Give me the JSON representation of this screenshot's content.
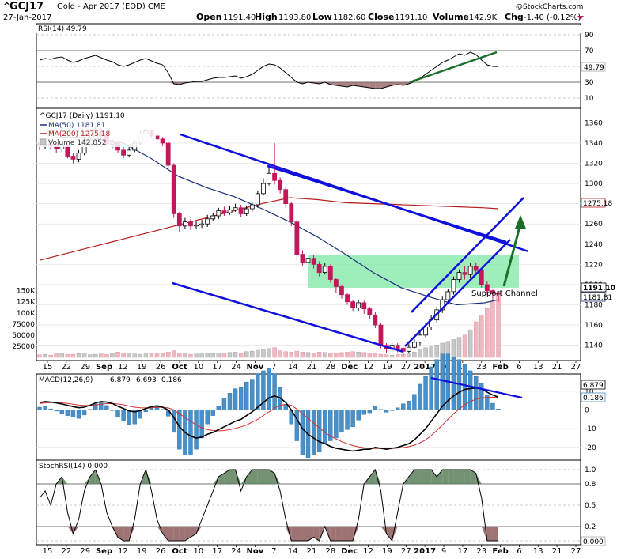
{
  "header": {
    "symbol": "GCJ17",
    "description": "Gold - Apr 2017 (EOD) CME",
    "date": "27-Jan-2017",
    "credit": "@StockCharts.com",
    "open_label": "Open",
    "open": "1191.40",
    "high_label": "High",
    "high": "1193.80",
    "low_label": "Low",
    "low": "1182.60",
    "close_label": "Close",
    "close": "1191.10",
    "volume_label": "Volume",
    "volume": "142.9K",
    "chg_label": "Chg",
    "chg": "-1.40 (-0.12%)"
  },
  "colors": {
    "up": "#000000",
    "down": "#c2185b",
    "ma50": "#1a2f7a",
    "ma200": "#b71c1c",
    "trendline": "#1010dd",
    "arrow": "#1a6e2a",
    "box": "#7ee8a6",
    "volume_up": "#c8c8c8",
    "volume_down": "#f2b6c0",
    "macd_hist": "#4a90c8",
    "macd_line": "#000000",
    "signal_line": "#d32f2f",
    "rsi_fill_high": "#2e7d32",
    "rsi_fill_low": "#8d5a5a",
    "stoch_high": "#5a7f5a",
    "stoch_low": "#8d5a5a"
  },
  "x_axis": {
    "labels": [
      "15",
      "22",
      "29",
      "Sep",
      "12",
      "19",
      "26",
      "Oct",
      "10",
      "17",
      "24",
      "Nov",
      "7",
      "14",
      "21",
      "28",
      "Dec",
      "12",
      "19",
      "27",
      "2017",
      "9",
      "17",
      "23",
      "Feb",
      "6",
      "13",
      "21",
      "27"
    ],
    "bold": [
      "Sep",
      "Oct",
      "Nov",
      "Dec",
      "2017",
      "Feb"
    ]
  },
  "rsi_panel": {
    "title": "RSI(14) 49.79",
    "ticks": [
      "90",
      "70",
      "50",
      "30",
      "10"
    ],
    "current_label": "49.79"
  },
  "price_panel": {
    "title": "^GCJ17 (Daily) 1191.10",
    "legend": [
      {
        "label": "MA(50) 1181.81",
        "color": "#1a2f7a"
      },
      {
        "label": "MA(200) 1275.18",
        "color": "#b71c1c"
      },
      {
        "label": "Volume 142,852",
        "color": "#888888"
      }
    ],
    "price_ticks": [
      "1360",
      "1340",
      "1320",
      "1300",
      "1280",
      "1260",
      "1240",
      "1220",
      "1200",
      "1180",
      "1160",
      "1140"
    ],
    "volume_ticks": [
      "150K",
      "125K",
      "100K",
      "75000",
      "50000",
      "25000"
    ],
    "tags": [
      {
        "label": "1275.18",
        "color": "#b71c1c"
      },
      {
        "label": "1191.10",
        "color": "#000000"
      },
      {
        "label": "1181.81",
        "color": "#1a2f7a"
      }
    ],
    "annotation": "Support Channel"
  },
  "macd_panel": {
    "title_prefix": "MACD(12,26,9)",
    "macd": "6.879",
    "signal": "6.693",
    "histogram": "0.186",
    "ticks": [
      "10",
      "0",
      "-10",
      "-20"
    ],
    "tags": [
      "6.879",
      "0.186"
    ]
  },
  "stoch_panel": {
    "title": "StochRSI(14) 0.000",
    "ticks": [
      "1.0",
      "0.8",
      "0.5",
      "0.2",
      "0.0"
    ],
    "current_label": "0.000"
  },
  "chart_data": {
    "type": "candlestick",
    "title": "^GCJ17 (Daily) 1191.10",
    "y_range_price": [
      1128,
      1372
    ],
    "overlays": {
      "ma50_last": 1181.81,
      "ma200_last": 1275.18,
      "ma50_path": [
        [
          0,
          1344
        ],
        [
          10,
          1346
        ],
        [
          20,
          1345
        ],
        [
          30,
          1340
        ],
        [
          40,
          1325
        ],
        [
          50,
          1307
        ],
        [
          60,
          1296
        ],
        [
          70,
          1287
        ],
        [
          80,
          1275
        ],
        [
          90,
          1262
        ],
        [
          100,
          1247
        ],
        [
          110,
          1230
        ],
        [
          120,
          1212
        ],
        [
          130,
          1197
        ],
        [
          140,
          1188
        ],
        [
          150,
          1180
        ],
        [
          160,
          1182
        ],
        [
          165,
          1185
        ]
      ],
      "ma200_path": [
        [
          0,
          1224
        ],
        [
          20,
          1238
        ],
        [
          40,
          1252
        ],
        [
          60,
          1266
        ],
        [
          80,
          1280
        ],
        [
          90,
          1286
        ],
        [
          100,
          1284
        ],
        [
          110,
          1281
        ],
        [
          120,
          1280
        ],
        [
          130,
          1279
        ],
        [
          140,
          1278
        ],
        [
          150,
          1277
        ],
        [
          160,
          1276
        ],
        [
          165,
          1275
        ]
      ]
    },
    "candles": [
      [
        1341,
        1337,
        1345,
        1333
      ],
      [
        1337,
        1339,
        1343,
        1334
      ],
      [
        1339,
        1337,
        1342,
        1333
      ],
      [
        1337,
        1334,
        1340,
        1330
      ],
      [
        1334,
        1338,
        1342,
        1331
      ],
      [
        1338,
        1327,
        1340,
        1325
      ],
      [
        1327,
        1324,
        1330,
        1320
      ],
      [
        1324,
        1330,
        1333,
        1321
      ],
      [
        1330,
        1343,
        1346,
        1328
      ],
      [
        1343,
        1345,
        1349,
        1340
      ],
      [
        1345,
        1352,
        1356,
        1343
      ],
      [
        1352,
        1347,
        1355,
        1344
      ],
      [
        1347,
        1339,
        1350,
        1337
      ],
      [
        1339,
        1341,
        1344,
        1335
      ],
      [
        1341,
        1333,
        1343,
        1330
      ],
      [
        1333,
        1328,
        1336,
        1325
      ],
      [
        1328,
        1333,
        1336,
        1326
      ],
      [
        1333,
        1340,
        1343,
        1331
      ],
      [
        1340,
        1349,
        1352,
        1338
      ],
      [
        1349,
        1352,
        1355,
        1346
      ],
      [
        1352,
        1347,
        1354,
        1345
      ],
      [
        1347,
        1344,
        1350,
        1341
      ],
      [
        1344,
        1340,
        1346,
        1337
      ],
      [
        1340,
        1318,
        1342,
        1314
      ],
      [
        1318,
        1270,
        1320,
        1266
      ],
      [
        1270,
        1258,
        1272,
        1252
      ],
      [
        1258,
        1262,
        1266,
        1255
      ],
      [
        1262,
        1258,
        1265,
        1254
      ],
      [
        1258,
        1259,
        1263,
        1255
      ],
      [
        1259,
        1260,
        1264,
        1256
      ],
      [
        1260,
        1265,
        1269,
        1257
      ],
      [
        1265,
        1268,
        1271,
        1263
      ],
      [
        1268,
        1273,
        1276,
        1265
      ],
      [
        1273,
        1271,
        1277,
        1268
      ],
      [
        1271,
        1274,
        1278,
        1269
      ],
      [
        1274,
        1276,
        1280,
        1272
      ],
      [
        1276,
        1270,
        1279,
        1267
      ],
      [
        1270,
        1275,
        1278,
        1268
      ],
      [
        1275,
        1279,
        1282,
        1272
      ],
      [
        1279,
        1290,
        1293,
        1276
      ],
      [
        1290,
        1300,
        1305,
        1288
      ],
      [
        1300,
        1310,
        1318,
        1298
      ],
      [
        1310,
        1303,
        1340,
        1299
      ],
      [
        1303,
        1294,
        1306,
        1290
      ],
      [
        1294,
        1280,
        1297,
        1276
      ],
      [
        1280,
        1262,
        1282,
        1258
      ],
      [
        1262,
        1230,
        1265,
        1224
      ],
      [
        1230,
        1222,
        1234,
        1218
      ],
      [
        1222,
        1226,
        1230,
        1219
      ],
      [
        1226,
        1220,
        1229,
        1216
      ],
      [
        1220,
        1212,
        1223,
        1208
      ],
      [
        1212,
        1218,
        1221,
        1210
      ],
      [
        1218,
        1205,
        1220,
        1202
      ],
      [
        1205,
        1198,
        1207,
        1192
      ],
      [
        1198,
        1190,
        1200,
        1186
      ],
      [
        1190,
        1183,
        1192,
        1180
      ],
      [
        1183,
        1177,
        1185,
        1174
      ],
      [
        1177,
        1182,
        1185,
        1174
      ],
      [
        1182,
        1176,
        1184,
        1171
      ],
      [
        1176,
        1170,
        1178,
        1166
      ],
      [
        1170,
        1160,
        1173,
        1157
      ],
      [
        1160,
        1140,
        1162,
        1137
      ],
      [
        1140,
        1136,
        1142,
        1132
      ],
      [
        1136,
        1140,
        1143,
        1133
      ],
      [
        1140,
        1137,
        1142,
        1133
      ],
      [
        1137,
        1134,
        1139,
        1130
      ],
      [
        1134,
        1138,
        1141,
        1132
      ],
      [
        1138,
        1143,
        1146,
        1136
      ],
      [
        1143,
        1150,
        1153,
        1140
      ],
      [
        1150,
        1158,
        1162,
        1148
      ],
      [
        1158,
        1165,
        1170,
        1155
      ],
      [
        1165,
        1175,
        1178,
        1162
      ],
      [
        1175,
        1185,
        1188,
        1172
      ],
      [
        1185,
        1193,
        1196,
        1182
      ],
      [
        1193,
        1205,
        1208,
        1190
      ],
      [
        1205,
        1212,
        1215,
        1202
      ],
      [
        1212,
        1210,
        1218,
        1205
      ],
      [
        1210,
        1218,
        1221,
        1207
      ],
      [
        1218,
        1214,
        1222,
        1211
      ],
      [
        1214,
        1200,
        1216,
        1197
      ],
      [
        1200,
        1194,
        1203,
        1190
      ],
      [
        1194,
        1191,
        1195,
        1185
      ],
      [
        1191.4,
        1191.1,
        1193.8,
        1182.6
      ]
    ],
    "volume": [
      6000,
      7000,
      5000,
      8000,
      9000,
      6500,
      7000,
      8500,
      9500,
      6000,
      7000,
      8000,
      6500,
      9000,
      12000,
      10000,
      8000,
      7500,
      7000,
      8000,
      9000,
      9500,
      8000,
      12000,
      15000,
      9000,
      8000,
      7000,
      7500,
      8000,
      9000,
      8500,
      9500,
      10000,
      11000,
      12000,
      10000,
      13000,
      14000,
      16000,
      18000,
      20000,
      22000,
      15000,
      13000,
      12000,
      14000,
      12000,
      11000,
      10000,
      12000,
      11000,
      9000,
      10000,
      11000,
      12000,
      13000,
      12000,
      11000,
      10000,
      9000,
      7000,
      6000,
      5000,
      6500,
      7000,
      8000,
      12000,
      18000,
      22000,
      24000,
      28000,
      32000,
      36000,
      40000,
      45000,
      50000,
      62000,
      80000,
      95000,
      110000,
      125000,
      142852
    ],
    "rsi": [
      58,
      60,
      59,
      61,
      62,
      58,
      55,
      57,
      60,
      62,
      64,
      61,
      58,
      56,
      52,
      50,
      52,
      55,
      58,
      60,
      57,
      54,
      52,
      42,
      28,
      27,
      29,
      30,
      31,
      31,
      33,
      35,
      36,
      36,
      37,
      38,
      35,
      37,
      40,
      45,
      50,
      53,
      52,
      48,
      42,
      36,
      30,
      28,
      30,
      29,
      28,
      30,
      27,
      26,
      25,
      24,
      26,
      25,
      24,
      23,
      22,
      22,
      24,
      26,
      27,
      26,
      28,
      31,
      35,
      40,
      45,
      50,
      55,
      58,
      62,
      66,
      64,
      68,
      65,
      58,
      52,
      50,
      49.79
    ],
    "macd": [
      4,
      4.5,
      4.2,
      3.8,
      3.2,
      2.5,
      1.8,
      1.2,
      1.5,
      2.5,
      3.8,
      4.5,
      4.2,
      3.5,
      2.0,
      0.8,
      -0.5,
      -1.0,
      -0.3,
      0.8,
      1.8,
      2.2,
      1.5,
      0,
      -4,
      -9,
      -12,
      -14,
      -15,
      -14.5,
      -13,
      -12,
      -10.5,
      -9,
      -7.5,
      -6,
      -5,
      -3,
      -1,
      1.5,
      4,
      6.5,
      7.5,
      6.5,
      4,
      0,
      -5,
      -10,
      -13,
      -15,
      -17,
      -18,
      -19.5,
      -20.5,
      -21,
      -21.5,
      -22,
      -21.5,
      -21,
      -21,
      -20,
      -20.5,
      -21,
      -20.5,
      -20,
      -19,
      -18,
      -16,
      -13,
      -10,
      -6,
      -2,
      2,
      5,
      7.5,
      9.5,
      11,
      11.5,
      11.8,
      11.2,
      9.5,
      8,
      6.879
    ],
    "signal": [
      3.5,
      3.8,
      4.0,
      4.0,
      3.8,
      3.5,
      3.1,
      2.7,
      2.4,
      2.4,
      2.7,
      3.1,
      3.4,
      3.5,
      3.2,
      2.8,
      2.1,
      1.5,
      1.2,
      1.1,
      1.2,
      1.4,
      1.4,
      1.1,
      0,
      -2,
      -4,
      -6,
      -8,
      -9.5,
      -10.5,
      -11,
      -11.2,
      -11,
      -10.5,
      -9.8,
      -9,
      -8,
      -6.5,
      -5,
      -3,
      -1,
      1,
      2.5,
      3,
      2.5,
      0.5,
      -2,
      -4.5,
      -7,
      -9.5,
      -12,
      -14,
      -15.5,
      -17,
      -18,
      -19,
      -19.7,
      -20.2,
      -20.5,
      -20.6,
      -20.6,
      -20.6,
      -20.5,
      -20.4,
      -20.1,
      -19.6,
      -18.8,
      -17.6,
      -16,
      -13.7,
      -11,
      -8,
      -5,
      -2,
      0.5,
      2.8,
      4.5,
      5.8,
      6.5,
      6.8,
      6.8,
      6.693
    ],
    "stochrsi": [
      0.6,
      0.7,
      0.5,
      0.8,
      0.9,
      0.4,
      0.1,
      0.3,
      0.7,
      0.9,
      1.0,
      0.8,
      0.4,
      0.2,
      0.05,
      0.0,
      0.0,
      0.3,
      0.8,
      1.0,
      0.7,
      0.3,
      0.1,
      0.0,
      0.0,
      0.0,
      0.0,
      0.05,
      0.1,
      0.3,
      0.5,
      0.7,
      0.9,
      0.95,
      1.0,
      1.0,
      0.7,
      0.9,
      1.0,
      1.0,
      1.0,
      1.0,
      0.95,
      0.7,
      0.3,
      0.0,
      0.0,
      0.0,
      0.0,
      0.05,
      0.0,
      0.2,
      0.0,
      0.0,
      0.0,
      0.0,
      0.0,
      0.3,
      0.8,
      0.9,
      1.0,
      0.7,
      0.1,
      0.0,
      0.4,
      0.8,
      0.9,
      1.0,
      1.0,
      1.0,
      1.0,
      0.9,
      1.0,
      1.0,
      1.0,
      1.0,
      1.0,
      1.0,
      0.95,
      0.6,
      0.0,
      0.0,
      0.0
    ]
  }
}
